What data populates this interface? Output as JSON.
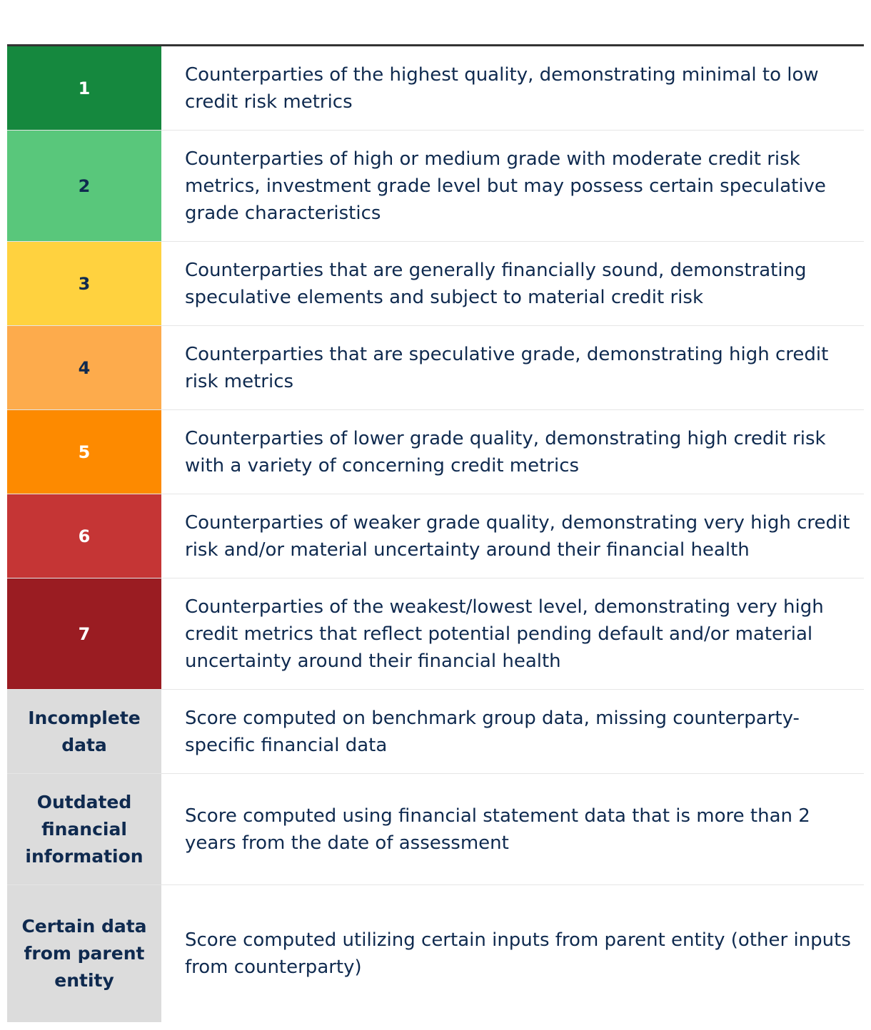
{
  "legend": {
    "rows": [
      {
        "score": "1",
        "description": "Counterparties of the highest quality, demonstrating minimal to low credit risk metrics",
        "color": "#15883e",
        "text_color": "#ffffff"
      },
      {
        "score": "2",
        "description": "Counterparties of high or medium grade with moderate credit risk metrics, investment grade level but may possess certain speculative grade characteristics",
        "color": "#59c77b",
        "text_color": "#0f2a4f"
      },
      {
        "score": "3",
        "description": "Counterparties that are generally financially sound, demonstrating speculative elements and subject to material credit risk",
        "color": "#ffd23f",
        "text_color": "#0f2a4f"
      },
      {
        "score": "4",
        "description": "Counterparties that are speculative grade, demonstrating high credit risk metrics",
        "color": "#fdab4c",
        "text_color": "#0f2a4f"
      },
      {
        "score": "5",
        "description": "Counterparties of lower grade quality, demonstrating high credit risk with a variety of concerning credit metrics",
        "color": "#fd8a00",
        "text_color": "#ffffff"
      },
      {
        "score": "6",
        "description": "Counterparties of weaker grade quality, demonstrating very high credit risk and/or material uncertainty around their financial health",
        "color": "#c53535",
        "text_color": "#ffffff"
      },
      {
        "score": "7",
        "description": "Counterparties of the weakest/lowest level, demonstrating very high credit metrics that reflect potential pending default and/or material uncertainty around their financial health",
        "color": "#9a1c22",
        "text_color": "#ffffff"
      },
      {
        "score": "Incomplete data",
        "description": "Score computed on benchmark group data, missing counterparty-specific financial data",
        "color": "#dcdcdc",
        "text_color": "#0f2a4f"
      },
      {
        "score": "Outdated financial information",
        "description": "Score computed using financial statement data that is more than 2 years from the date of assessment",
        "color": "#dcdcdc",
        "text_color": "#0f2a4f"
      },
      {
        "score": "Certain data from parent entity",
        "description": "Score computed utilizing certain inputs from parent entity (other inputs from counterparty)",
        "color": "#dcdcdc",
        "text_color": "#0f2a4f"
      }
    ]
  }
}
